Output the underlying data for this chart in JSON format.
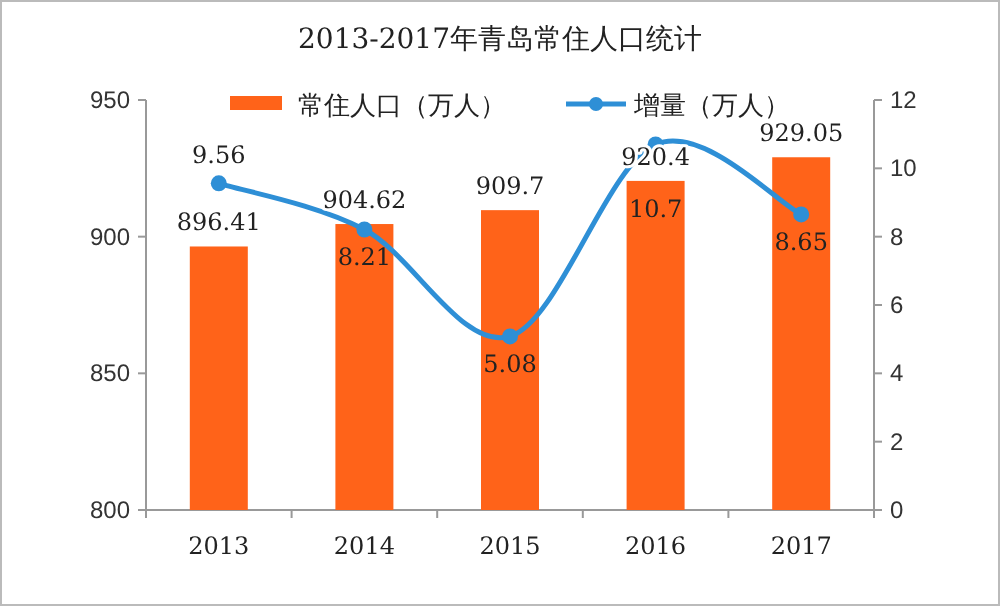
{
  "chart_data": {
    "type": "bar",
    "title": "2013-2017年青岛常住人口统计",
    "categories": [
      "2013",
      "2014",
      "2015",
      "2016",
      "2017"
    ],
    "series": [
      {
        "name": "常住人口（万人）",
        "type": "bar",
        "color": "#ff6319",
        "values": [
          896.41,
          904.62,
          909.7,
          920.4,
          929.05
        ]
      },
      {
        "name": "增量（万人）",
        "type": "line",
        "axis": "y2",
        "color": "#2e8fd6",
        "marker": "circle",
        "values": [
          9.56,
          8.21,
          5.08,
          10.7,
          8.65
        ]
      }
    ],
    "ylim": [
      800,
      950
    ],
    "yticks": [
      800,
      850,
      900,
      950
    ],
    "y2lim": [
      0,
      12
    ],
    "y2ticks": [
      0,
      2,
      4,
      6,
      8,
      10,
      12
    ],
    "data_labels": true,
    "legend": "top",
    "grid": false
  }
}
